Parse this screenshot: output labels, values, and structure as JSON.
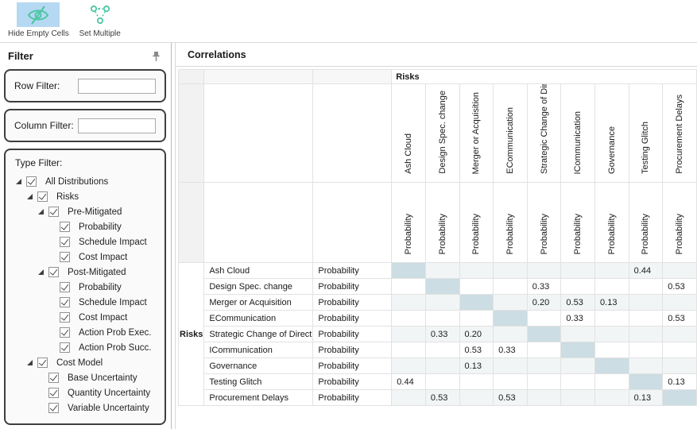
{
  "colors": {
    "accent_teal": "#4cc6a3",
    "selected_button_bg": "#b5d8f3",
    "diagonal_cell_bg": "#ccdde3",
    "alt_row_bg": "#f1f5f6"
  },
  "toolbar": {
    "buttons": [
      {
        "label": "Hide Empty Cells",
        "icon": "eye-slash-icon",
        "selected": true
      },
      {
        "label": "Set Multiple",
        "icon": "linked-nodes-icon",
        "selected": false
      }
    ]
  },
  "filter_panel": {
    "title": "Filter",
    "pin_icon": "pin-icon",
    "row_filter": {
      "label": "Row Filter:",
      "value": ""
    },
    "column_filter": {
      "label": "Column Filter:",
      "value": ""
    },
    "type_filter": {
      "label": "Type Filter:",
      "items": [
        {
          "label": "All Distributions",
          "level": 0,
          "expander": true,
          "checked": true
        },
        {
          "label": "Risks",
          "level": 1,
          "expander": true,
          "checked": true
        },
        {
          "label": "Pre-Mitigated",
          "level": 2,
          "expander": true,
          "checked": true
        },
        {
          "label": "Probability",
          "level": 3,
          "expander": false,
          "checked": true
        },
        {
          "label": "Schedule Impact",
          "level": 3,
          "expander": false,
          "checked": true
        },
        {
          "label": "Cost Impact",
          "level": 3,
          "expander": false,
          "checked": true
        },
        {
          "label": "Post-Mitigated",
          "level": 2,
          "expander": true,
          "checked": true
        },
        {
          "label": "Probability",
          "level": 3,
          "expander": false,
          "checked": true
        },
        {
          "label": "Schedule Impact",
          "level": 3,
          "expander": false,
          "checked": true
        },
        {
          "label": "Cost Impact",
          "level": 3,
          "expander": false,
          "checked": true
        },
        {
          "label": "Action Prob Exec.",
          "level": 3,
          "expander": false,
          "checked": true
        },
        {
          "label": "Action Prob Succ.",
          "level": 3,
          "expander": false,
          "checked": true
        },
        {
          "label": "Cost Model",
          "level": 1,
          "expander": true,
          "checked": true
        },
        {
          "label": "Base Uncertainty",
          "level": 2,
          "expander": false,
          "checked": true
        },
        {
          "label": "Quantity Uncertainty",
          "level": 2,
          "expander": false,
          "checked": true
        },
        {
          "label": "Variable Uncertainty",
          "level": 2,
          "expander": false,
          "checked": true
        }
      ]
    }
  },
  "main": {
    "title": "Correlations",
    "table": {
      "group_header": "Risks",
      "row_group_label": "Risks",
      "sub_header_label": "Probability",
      "columns": [
        "Ash Cloud",
        "Design Spec. change",
        "Merger or Acquisition",
        "ECommunication",
        "Strategic Change of Direct",
        "ICommunication",
        "Governance",
        "Testing Glitch",
        "Procurement Delays"
      ],
      "rows": [
        {
          "label": "Ash Cloud",
          "type": "Probability",
          "values": [
            "",
            "",
            "",
            "",
            "",
            "",
            "",
            "0.44",
            ""
          ]
        },
        {
          "label": "Design Spec. change",
          "type": "Probability",
          "values": [
            "",
            "",
            "",
            "",
            "0.33",
            "",
            "",
            "",
            "0.53"
          ]
        },
        {
          "label": "Merger or Acquisition",
          "type": "Probability",
          "values": [
            "",
            "",
            "",
            "",
            "0.20",
            "0.53",
            "0.13",
            "",
            ""
          ]
        },
        {
          "label": "ECommunication",
          "type": "Probability",
          "values": [
            "",
            "",
            "",
            "",
            "",
            "0.33",
            "",
            "",
            "0.53"
          ]
        },
        {
          "label": "Strategic Change of Direct",
          "type": "Probability",
          "values": [
            "",
            "0.33",
            "0.20",
            "",
            "",
            "",
            "",
            "",
            ""
          ]
        },
        {
          "label": "ICommunication",
          "type": "Probability",
          "values": [
            "",
            "",
            "0.53",
            "0.33",
            "",
            "",
            "",
            "",
            ""
          ]
        },
        {
          "label": "Governance",
          "type": "Probability",
          "values": [
            "",
            "",
            "0.13",
            "",
            "",
            "",
            "",
            "",
            ""
          ]
        },
        {
          "label": "Testing Glitch",
          "type": "Probability",
          "values": [
            "0.44",
            "",
            "",
            "",
            "",
            "",
            "",
            "",
            "0.13"
          ]
        },
        {
          "label": "Procurement Delays",
          "type": "Probability",
          "values": [
            "",
            "0.53",
            "",
            "0.53",
            "",
            "",
            "",
            "0.13",
            ""
          ]
        }
      ]
    }
  }
}
